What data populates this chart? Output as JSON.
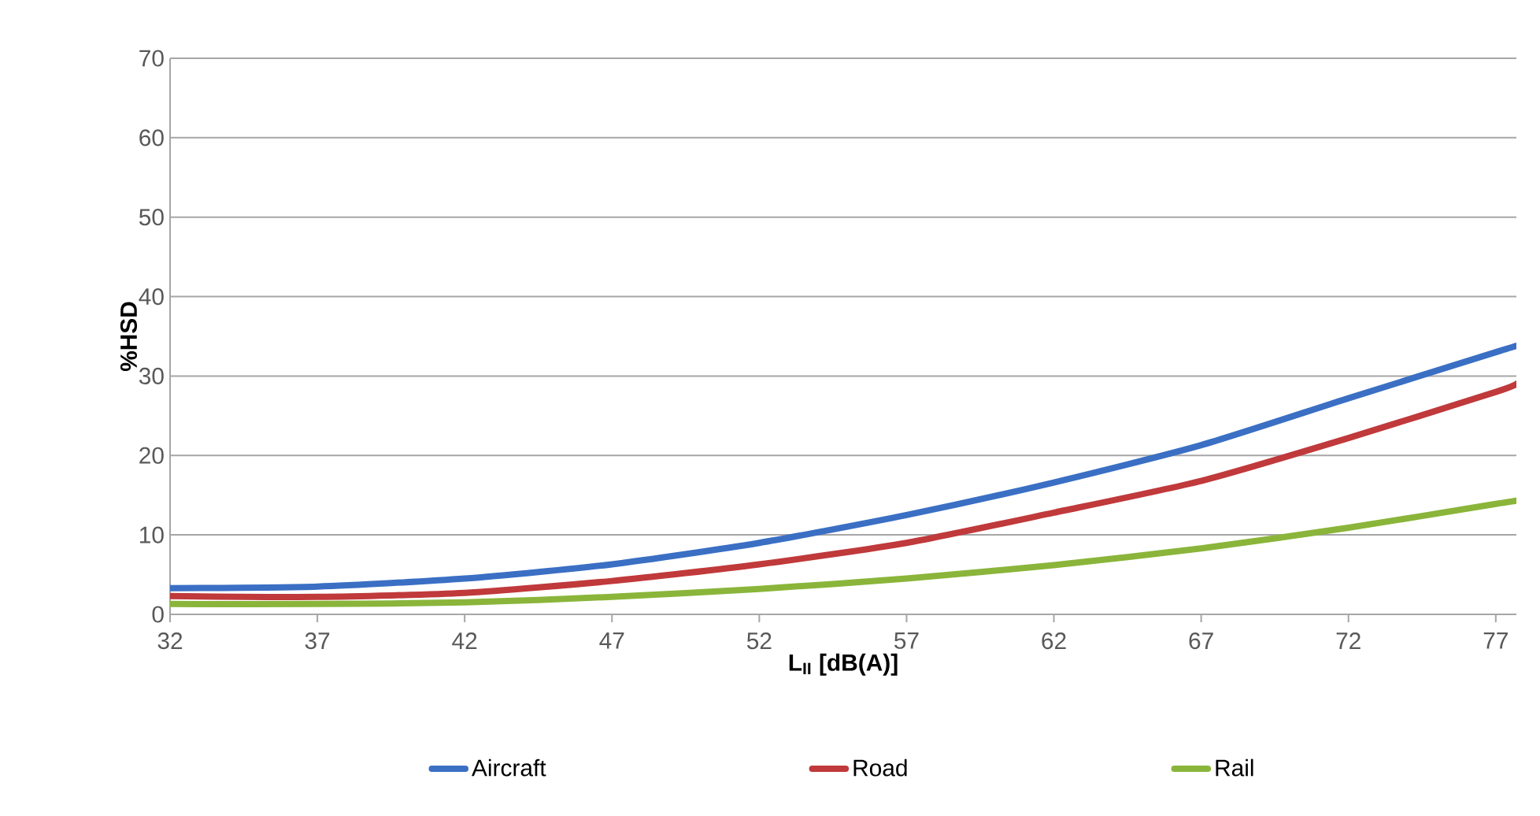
{
  "chart_data": {
    "type": "line",
    "xlabel": "L$_{II}$ [dB(A)]",
    "ylabel": "%HSD",
    "xlim": [
      32,
      77.7
    ],
    "xticks": [
      32,
      37,
      42,
      47,
      52,
      57,
      62,
      67,
      72,
      77
    ],
    "ylim": [
      0,
      70
    ],
    "yticks": [
      0,
      10,
      20,
      30,
      40,
      50,
      60,
      70
    ],
    "grid": "y",
    "legend": "bottom",
    "marker": "none",
    "line_style": "solid",
    "x": [
      32,
      37,
      42,
      47,
      52,
      57,
      62,
      67,
      72,
      77,
      77.7
    ],
    "series": [
      {
        "name": "Aircraft",
        "color": "#3a6fc4",
        "values": [
          3.3,
          3.5,
          4.5,
          6.3,
          9,
          12.5,
          16.6,
          21.3,
          27.2,
          33,
          33.8
        ]
      },
      {
        "name": "Road",
        "color": "#c0393b",
        "values": [
          2.3,
          2.2,
          2.7,
          4.2,
          6.3,
          9,
          12.8,
          16.8,
          22.2,
          28,
          29
        ]
      },
      {
        "name": "Rail",
        "color": "#8ab53a",
        "values": [
          1.3,
          1.3,
          1.5,
          2.2,
          3.2,
          4.5,
          6.2,
          8.3,
          10.9,
          13.9,
          14.3
        ]
      }
    ]
  }
}
